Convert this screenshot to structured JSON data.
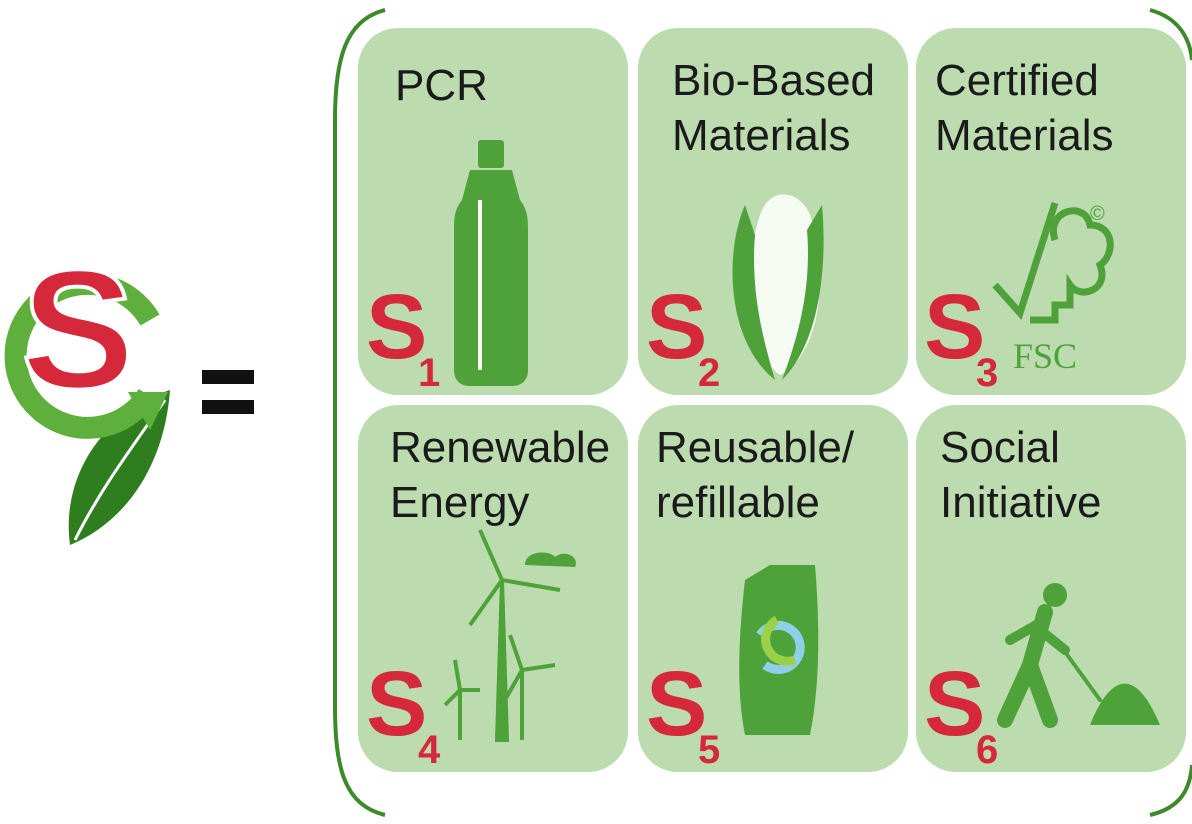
{
  "logo": {
    "letter": "S"
  },
  "tiles": [
    {
      "title": [
        "PCR"
      ],
      "letter": "S",
      "index": 1
    },
    {
      "title": [
        "Bio-Based",
        "Materials"
      ],
      "letter": "S",
      "index": 2
    },
    {
      "title": [
        "Certified",
        "Materials"
      ],
      "letter": "S",
      "index": 3
    },
    {
      "title": [
        "Renewable",
        "Energy"
      ],
      "letter": "S",
      "index": 4
    },
    {
      "title": [
        "Reusable/",
        "refillable"
      ],
      "letter": "S",
      "index": 5
    },
    {
      "title": [
        "Social",
        "Initiative"
      ],
      "letter": "S",
      "index": 6
    }
  ],
  "fsc": {
    "mark": "FSC",
    "copyright": "©"
  }
}
